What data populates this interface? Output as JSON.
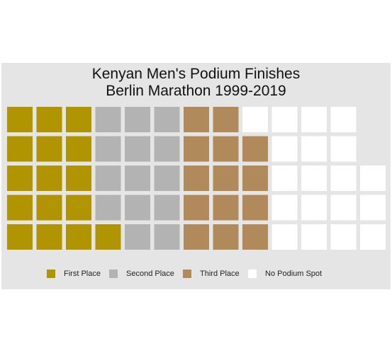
{
  "title_line1": "Kenyan Men's Podium Finishes",
  "title_line2": "Berlin Marathon 1999-2019",
  "chart_data": {
    "type": "waffle",
    "title": "Kenyan Men's Podium Finishes Berlin Marathon 1999-2019",
    "rows": 5,
    "columns": 13,
    "fill_order": "column-major, bottom-to-top, left-to-right",
    "categories": [
      "First Place",
      "Second Place",
      "Third Place",
      "No Podium Spot"
    ],
    "values": [
      16,
      14,
      14,
      19
    ],
    "colors": {
      "First Place": "#b09500",
      "Second Place": "#b3b3b3",
      "Third Place": "#b08a5a",
      "No Podium Spot": "#ffffff"
    },
    "legend_position": "bottom",
    "grid": false
  },
  "legend": [
    {
      "label": "First Place",
      "color": "#b09500"
    },
    {
      "label": "Second Place",
      "color": "#b3b3b3"
    },
    {
      "label": "Third Place",
      "color": "#b08a5a"
    },
    {
      "label": "No Podium Spot",
      "color": "#ffffff"
    }
  ]
}
